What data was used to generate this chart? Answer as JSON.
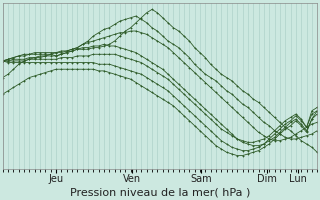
{
  "bg_color": "#cce8e0",
  "grid_color": "#a8ccc4",
  "line_color": "#2d5a27",
  "marker_color": "#2d5a27",
  "ylim": [
    1010.5,
    1020.5
  ],
  "yticks": [
    1011,
    1012,
    1013,
    1014,
    1015,
    1016,
    1017,
    1018,
    1019,
    1020
  ],
  "xlabel": "Pression niveau de la mer( hPa )",
  "xlabel_fontsize": 8,
  "tick_fontsize": 7,
  "day_labels": [
    "Jeu",
    "Ven",
    "Sam",
    "Dim",
    "Lun"
  ],
  "day_positions": [
    0.17,
    0.41,
    0.63,
    0.84,
    0.94
  ],
  "n_points": 60,
  "xlim": [
    0,
    59
  ],
  "series": [
    [
      1016.0,
      1016.2,
      1016.5,
      1016.8,
      1017.0,
      1017.1,
      1017.2,
      1017.3,
      1017.3,
      1017.4,
      1017.3,
      1017.4,
      1017.5,
      1017.6,
      1017.7,
      1017.7,
      1017.7,
      1017.8,
      1017.8,
      1017.9,
      1018.0,
      1018.2,
      1018.5,
      1018.8,
      1019.0,
      1019.3,
      1019.6,
      1019.9,
      1020.1,
      1019.9,
      1019.6,
      1019.3,
      1019.0,
      1018.8,
      1018.5,
      1018.2,
      1017.8,
      1017.5,
      1017.2,
      1016.8,
      1016.5,
      1016.2,
      1016.0,
      1015.8,
      1015.5,
      1015.2,
      1015.0,
      1014.7,
      1014.5,
      1014.2,
      1013.9,
      1013.6,
      1013.3,
      1013.0,
      1012.8,
      1012.5,
      1012.2,
      1012.0,
      1011.8,
      1011.5
    ],
    [
      1017.0,
      1017.1,
      1017.2,
      1017.3,
      1017.4,
      1017.4,
      1017.5,
      1017.5,
      1017.5,
      1017.5,
      1017.5,
      1017.6,
      1017.6,
      1017.7,
      1017.8,
      1018.0,
      1018.2,
      1018.5,
      1018.7,
      1018.9,
      1019.0,
      1019.2,
      1019.4,
      1019.5,
      1019.6,
      1019.7,
      1019.5,
      1019.3,
      1019.0,
      1018.8,
      1018.5,
      1018.2,
      1018.0,
      1017.8,
      1017.5,
      1017.2,
      1016.8,
      1016.5,
      1016.2,
      1016.0,
      1015.8,
      1015.5,
      1015.2,
      1015.0,
      1014.7,
      1014.4,
      1014.2,
      1013.9,
      1013.6,
      1013.3,
      1013.1,
      1012.8,
      1012.6,
      1012.4,
      1012.3,
      1012.3,
      1012.4,
      1012.5,
      1012.6,
      1012.8
    ],
    [
      1017.0,
      1017.1,
      1017.2,
      1017.3,
      1017.3,
      1017.4,
      1017.4,
      1017.4,
      1017.4,
      1017.4,
      1017.5,
      1017.5,
      1017.6,
      1017.7,
      1017.8,
      1018.0,
      1018.1,
      1018.2,
      1018.3,
      1018.4,
      1018.5,
      1018.6,
      1018.7,
      1018.7,
      1018.8,
      1018.8,
      1018.7,
      1018.6,
      1018.4,
      1018.2,
      1018.0,
      1017.8,
      1017.5,
      1017.2,
      1016.9,
      1016.6,
      1016.3,
      1016.0,
      1015.7,
      1015.4,
      1015.1,
      1014.8,
      1014.5,
      1014.2,
      1013.9,
      1013.6,
      1013.3,
      1013.0,
      1012.7,
      1012.5,
      1012.3,
      1012.2,
      1012.2,
      1012.3,
      1012.4,
      1012.6,
      1012.8,
      1013.0,
      1013.2,
      1013.3
    ],
    [
      1017.0,
      1017.0,
      1017.1,
      1017.1,
      1017.1,
      1017.2,
      1017.2,
      1017.2,
      1017.3,
      1017.3,
      1017.3,
      1017.4,
      1017.5,
      1017.6,
      1017.7,
      1017.8,
      1017.8,
      1017.9,
      1017.9,
      1018.0,
      1017.9,
      1017.9,
      1017.8,
      1017.7,
      1017.6,
      1017.5,
      1017.3,
      1017.1,
      1016.9,
      1016.7,
      1016.5,
      1016.2,
      1015.9,
      1015.6,
      1015.3,
      1015.0,
      1014.7,
      1014.4,
      1014.1,
      1013.8,
      1013.5,
      1013.2,
      1012.9,
      1012.6,
      1012.3,
      1012.1,
      1012.0,
      1011.9,
      1011.9,
      1012.0,
      1012.2,
      1012.4,
      1012.7,
      1013.0,
      1013.3,
      1013.5,
      1013.2,
      1012.8,
      1013.5,
      1014.0
    ],
    [
      1017.0,
      1017.0,
      1017.0,
      1017.0,
      1017.0,
      1017.1,
      1017.1,
      1017.1,
      1017.1,
      1017.1,
      1017.1,
      1017.2,
      1017.2,
      1017.2,
      1017.3,
      1017.3,
      1017.3,
      1017.4,
      1017.4,
      1017.4,
      1017.4,
      1017.4,
      1017.3,
      1017.2,
      1017.1,
      1017.0,
      1016.9,
      1016.7,
      1016.5,
      1016.3,
      1016.1,
      1015.9,
      1015.6,
      1015.3,
      1015.0,
      1014.7,
      1014.4,
      1014.1,
      1013.8,
      1013.5,
      1013.2,
      1012.9,
      1012.7,
      1012.5,
      1012.3,
      1012.2,
      1012.1,
      1012.1,
      1012.2,
      1012.3,
      1012.5,
      1012.8,
      1013.1,
      1013.4,
      1013.6,
      1013.8,
      1013.5,
      1013.0,
      1014.0,
      1014.2
    ],
    [
      1017.0,
      1016.9,
      1016.9,
      1016.9,
      1016.9,
      1016.9,
      1016.9,
      1016.9,
      1016.9,
      1016.9,
      1016.9,
      1016.9,
      1016.9,
      1016.9,
      1016.9,
      1016.9,
      1016.9,
      1016.9,
      1016.8,
      1016.8,
      1016.8,
      1016.7,
      1016.6,
      1016.5,
      1016.4,
      1016.3,
      1016.2,
      1016.0,
      1015.8,
      1015.6,
      1015.4,
      1015.2,
      1014.9,
      1014.6,
      1014.3,
      1014.0,
      1013.7,
      1013.4,
      1013.1,
      1012.8,
      1012.5,
      1012.2,
      1012.0,
      1011.8,
      1011.7,
      1011.6,
      1011.6,
      1011.7,
      1011.8,
      1012.0,
      1012.3,
      1012.6,
      1012.9,
      1013.2,
      1013.4,
      1013.7,
      1013.4,
      1013.0,
      1013.8,
      1014.0
    ],
    [
      1015.0,
      1015.2,
      1015.4,
      1015.6,
      1015.8,
      1016.0,
      1016.1,
      1016.2,
      1016.3,
      1016.4,
      1016.5,
      1016.5,
      1016.5,
      1016.5,
      1016.5,
      1016.5,
      1016.5,
      1016.5,
      1016.4,
      1016.4,
      1016.3,
      1016.2,
      1016.1,
      1016.0,
      1015.9,
      1015.7,
      1015.5,
      1015.3,
      1015.1,
      1014.9,
      1014.7,
      1014.5,
      1014.3,
      1014.0,
      1013.7,
      1013.4,
      1013.1,
      1012.8,
      1012.5,
      1012.2,
      1011.9,
      1011.7,
      1011.5,
      1011.4,
      1011.3,
      1011.3,
      1011.4,
      1011.5,
      1011.6,
      1011.8,
      1012.0,
      1012.3,
      1012.6,
      1012.9,
      1013.1,
      1013.4,
      1013.1,
      1012.7,
      1013.5,
      1013.8
    ]
  ]
}
